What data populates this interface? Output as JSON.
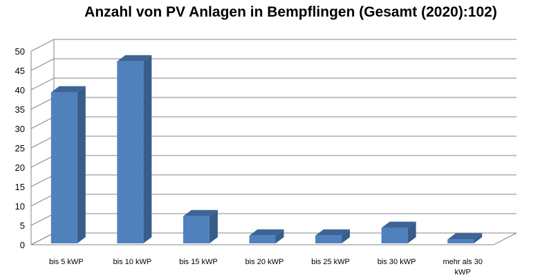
{
  "chart_data": {
    "type": "bar",
    "title": "Anzahl von PV Anlagen in Bempflingen (Gesamt (2020):102)",
    "categories": [
      "bis 5 kWP",
      "bis 10 kWP",
      "bis 15 kWP",
      "bis 20 kWP",
      "bis 25 kWP",
      "bis 30 kWP",
      "mehr als 30 kWP"
    ],
    "values": [
      39,
      47,
      7,
      2,
      2,
      4,
      1
    ],
    "xlabel": "",
    "ylabel": "",
    "ylim": [
      0,
      50
    ],
    "yticks": [
      0,
      5,
      10,
      15,
      20,
      25,
      30,
      35,
      40,
      45,
      50
    ],
    "grid": true,
    "legend": "none",
    "style": "3d-column",
    "colors": {
      "bar_front": "#4f81bd",
      "bar_side": "#385d8a",
      "bar_top": "#3d6496",
      "grid": "#868686",
      "axis_text": "#000000"
    }
  }
}
